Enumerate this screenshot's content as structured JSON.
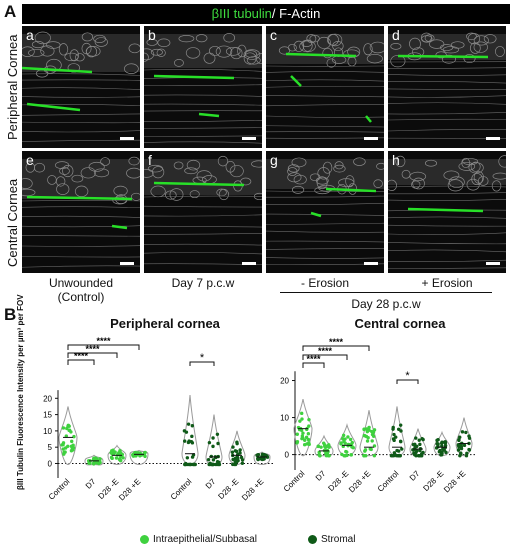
{
  "panel_letters": {
    "A": "A",
    "B": "B"
  },
  "header": {
    "green": "βIII tubulin",
    "white": "/ F-Actin"
  },
  "micrographs": {
    "row1": [
      {
        "label": "a"
      },
      {
        "label": "b"
      },
      {
        "label": "c"
      },
      {
        "label": "d"
      }
    ],
    "row2": [
      {
        "label": "e"
      },
      {
        "label": "f"
      },
      {
        "label": "g"
      },
      {
        "label": "h"
      }
    ]
  },
  "row_labels": {
    "row1": "Peripheral Cornea",
    "row2": "Central Cornea"
  },
  "conditions": {
    "unwounded": "Unwounded",
    "control": "(Control)",
    "day7": "Day 7 p.c.w",
    "minus_erosion": "- Erosion",
    "plus_erosion": "+ Erosion",
    "day28": "Day 28 p.c.w"
  },
  "colors": {
    "intraepithelial": "#3fd13f",
    "stromal": "#0f5a18",
    "violin": "#9a9a9a",
    "green_signal": "#28e028"
  },
  "chart_data": [
    {
      "type": "scatter",
      "title": "Peripheral cornea",
      "ylabel": "βIII Tubulin Fluorescence Intensity per µm³ per FOV",
      "ylim": [
        -2,
        25
      ],
      "yticks": [
        0,
        5,
        10,
        15,
        20
      ],
      "categories": [
        "Control",
        "D7",
        "D28 -E",
        "D28 +E",
        "Control",
        "D7",
        "D28 -E",
        "D28 +E"
      ],
      "series": [
        {
          "name": "Intraepithelial/Subbasal",
          "groups": [
            {
              "category": "Control",
              "median": 8,
              "max": 17.5
            },
            {
              "category": "D7",
              "median": 0.8,
              "max": 2.5
            },
            {
              "category": "D28 -E",
              "median": 2.5,
              "max": 5.5
            },
            {
              "category": "D28 +E",
              "median": 2.8,
              "max": 4
            }
          ]
        },
        {
          "name": "Stromal",
          "groups": [
            {
              "category": "Control",
              "median": 3,
              "max": 21
            },
            {
              "category": "D7",
              "median": 2,
              "max": 15
            },
            {
              "category": "D28 -E",
              "median": 2.5,
              "max": 10
            },
            {
              "category": "D28 +E",
              "median": 2,
              "max": 3.5
            }
          ]
        }
      ],
      "significance": [
        {
          "from": "Control",
          "to": "D7",
          "label": "****"
        },
        {
          "from": "Control",
          "to": "D28 -E",
          "label": "****"
        },
        {
          "from": "Control",
          "to": "D28 +E",
          "label": "****"
        },
        {
          "from": "Stromal Control",
          "to": "Stromal D7",
          "label": "*"
        }
      ]
    },
    {
      "type": "scatter",
      "title": "Central cornea",
      "ylim": [
        -2,
        25
      ],
      "yticks": [
        0,
        10,
        20
      ],
      "categories": [
        "Control",
        "D7",
        "D28 -E",
        "D28 +E",
        "Control",
        "D7",
        "D28 -E",
        "D28 +E"
      ],
      "series": [
        {
          "name": "Intraepithelial/Subbasal",
          "groups": [
            {
              "category": "Control",
              "median": 7,
              "max": 15
            },
            {
              "category": "D7",
              "median": 1,
              "max": 5
            },
            {
              "category": "D28 -E",
              "median": 2.5,
              "max": 8
            },
            {
              "category": "D28 +E",
              "median": 2,
              "max": 12
            }
          ]
        },
        {
          "name": "Stromal",
          "groups": [
            {
              "category": "Control",
              "median": 2,
              "max": 13
            },
            {
              "category": "D7",
              "median": 1.5,
              "max": 7
            },
            {
              "category": "D28 -E",
              "median": 2,
              "max": 6
            },
            {
              "category": "D28 +E",
              "median": 3,
              "max": 10
            }
          ]
        }
      ],
      "significance": [
        {
          "from": "Control",
          "to": "D7",
          "label": "****"
        },
        {
          "from": "Control",
          "to": "D28 -E",
          "label": "****"
        },
        {
          "from": "Control",
          "to": "D28 +E",
          "label": "****"
        },
        {
          "from": "Stromal Control",
          "to": "Stromal D7",
          "label": "*"
        }
      ]
    }
  ],
  "legend": [
    {
      "label": "Intraepithelial/Subbasal"
    },
    {
      "label": "Stromal"
    }
  ]
}
